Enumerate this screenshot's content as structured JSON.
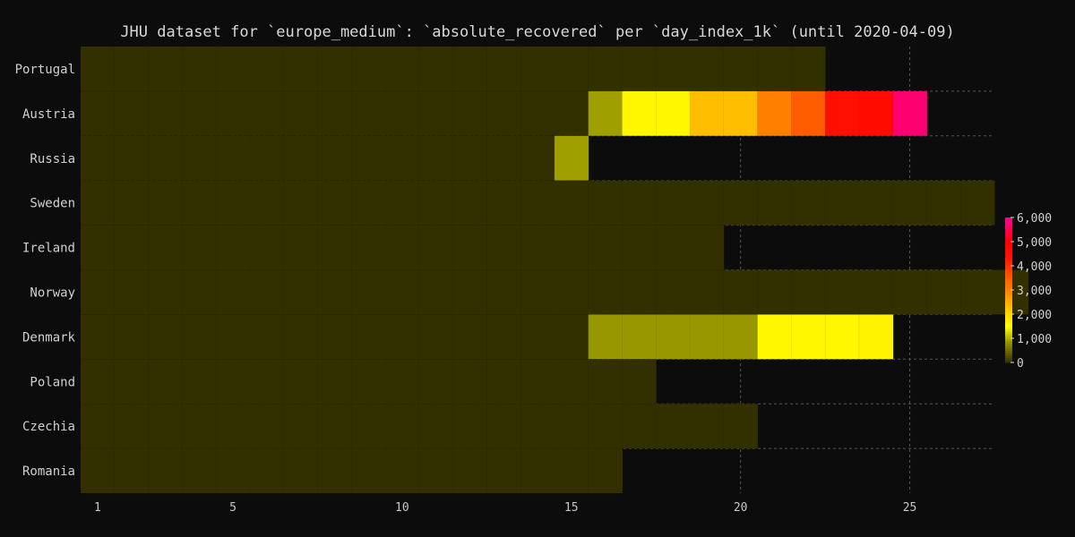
{
  "chart_data": {
    "type": "heatmap",
    "title": "JHU dataset for `europe_medium`: `absolute_recovered` per `day_index_1k` (until 2020-04-09)",
    "xlabel": "",
    "ylabel": "",
    "x_ticks": [
      "1",
      "5",
      "10",
      "15",
      "20",
      "25"
    ],
    "x_tick_values": [
      1,
      5,
      10,
      15,
      20,
      25
    ],
    "xlim": [
      0.5,
      27.5
    ],
    "colorbar": {
      "min": 0,
      "max": 6000,
      "tick_labels": [
        "0",
        "1,000",
        "2,000",
        "3,000",
        "4,000",
        "5,000",
        "6,000"
      ],
      "tick_values": [
        0,
        1000,
        2000,
        3000,
        4000,
        5000,
        6000
      ],
      "colors": [
        {
          "value": 0,
          "color": "#333000"
        },
        {
          "value": 800,
          "color": "#8f8f00"
        },
        {
          "value": 1500,
          "color": "#ffff00"
        },
        {
          "value": 2300,
          "color": "#ffbf00"
        },
        {
          "value": 3000,
          "color": "#ff7f00"
        },
        {
          "value": 3600,
          "color": "#ff5500"
        },
        {
          "value": 4300,
          "color": "#ff1500"
        },
        {
          "value": 5000,
          "color": "#ff0000"
        },
        {
          "value": 5700,
          "color": "#ff0070"
        },
        {
          "value": 6000,
          "color": "#ff0090"
        }
      ]
    },
    "rows": [
      {
        "country": "Portugal",
        "values": [
          0,
          0,
          0,
          0,
          0,
          0,
          0,
          0,
          0,
          0,
          0,
          0,
          0,
          0,
          0,
          0,
          0,
          0,
          0,
          0,
          0,
          0
        ]
      },
      {
        "country": "Austria",
        "values": [
          0,
          0,
          0,
          0,
          0,
          0,
          0,
          0,
          0,
          0,
          0,
          0,
          0,
          0,
          0,
          900,
          1600,
          1600,
          2300,
          2300,
          3000,
          3500,
          4500,
          4600,
          5700
        ]
      },
      {
        "country": "Russia",
        "values": [
          0,
          0,
          0,
          0,
          0,
          0,
          0,
          0,
          0,
          0,
          0,
          0,
          0,
          0,
          900
        ]
      },
      {
        "country": "Sweden",
        "values": [
          0,
          0,
          0,
          0,
          0,
          0,
          0,
          0,
          0,
          0,
          0,
          0,
          0,
          0,
          0,
          0,
          0,
          0,
          0,
          0,
          0,
          0,
          0,
          0,
          0,
          0,
          0
        ]
      },
      {
        "country": "Ireland",
        "values": [
          0,
          0,
          0,
          0,
          0,
          0,
          0,
          0,
          0,
          0,
          0,
          0,
          0,
          0,
          0,
          0,
          0,
          0,
          0
        ]
      },
      {
        "country": "Norway",
        "values": [
          0,
          0,
          0,
          0,
          0,
          0,
          0,
          0,
          0,
          0,
          0,
          0,
          0,
          0,
          0,
          0,
          0,
          0,
          0,
          0,
          0,
          0,
          0,
          0,
          0,
          0,
          0,
          0
        ]
      },
      {
        "country": "Denmark",
        "values": [
          0,
          0,
          0,
          0,
          0,
          0,
          0,
          0,
          0,
          0,
          0,
          0,
          0,
          0,
          0,
          850,
          850,
          850,
          850,
          850,
          1600,
          1600,
          1600,
          1650
        ]
      },
      {
        "country": "Poland",
        "values": [
          0,
          0,
          0,
          0,
          0,
          0,
          0,
          0,
          0,
          0,
          0,
          0,
          0,
          0,
          0,
          0,
          0
        ]
      },
      {
        "country": "Czechia",
        "values": [
          0,
          0,
          0,
          0,
          0,
          0,
          0,
          0,
          0,
          0,
          0,
          0,
          0,
          0,
          0,
          0,
          0,
          0,
          0,
          0
        ]
      },
      {
        "country": "Romania",
        "values": [
          0,
          0,
          0,
          0,
          0,
          0,
          0,
          0,
          0,
          0,
          0,
          0,
          0,
          0,
          0,
          0
        ]
      }
    ]
  }
}
